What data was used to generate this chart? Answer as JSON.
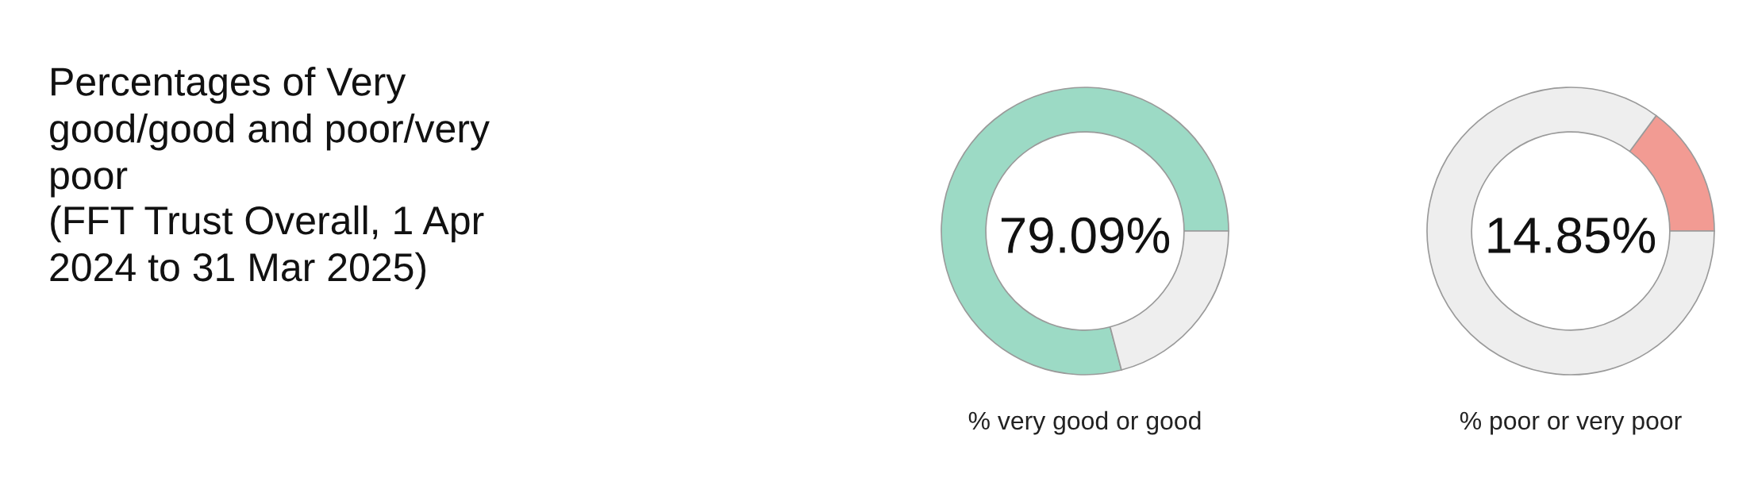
{
  "chart_data": [
    {
      "type": "other",
      "title": "Percentages of Very good/good and poor/very poor",
      "subtitle": "(FFT Trust Overall, 1 Apr 2024 to 31 Mar 2025)"
    },
    {
      "type": "donut",
      "categories": [
        null,
        null
      ],
      "values": [
        79.09,
        20.91
      ],
      "colors": [
        "#9cdac5",
        "#eeeeee"
      ],
      "annotations": [
        "79.09%"
      ],
      "xlabel": "% very good or good"
    },
    {
      "type": "donut",
      "categories": [
        null,
        null
      ],
      "values": [
        14.85,
        85.15
      ],
      "colors": [
        "#f29b93",
        "#eeeeee"
      ],
      "annotations": [
        "14.85%"
      ],
      "xlabel": "% poor or very poor"
    }
  ]
}
